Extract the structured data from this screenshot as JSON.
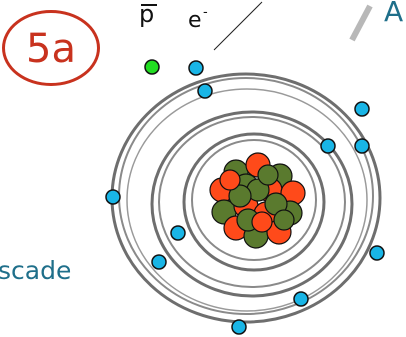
{
  "badge": {
    "label": "5a"
  },
  "labels": {
    "proton_symbol": "p",
    "electron_symbol": "e",
    "electron_superscript": "-",
    "corner_letter": "A",
    "side_word": "scade"
  },
  "colors": {
    "badge": "#c8321e",
    "electron": "#19b5e6",
    "proton_red": "#ff4a1a",
    "neutron_green": "#5a7a2e",
    "free_particle": "#22dd22",
    "orbit": "#7a7a7a",
    "accent_text": "#1f6f8a"
  },
  "diagram": {
    "orbit_count": 3,
    "electron_count": 12,
    "nucleus": {
      "red_particles": 10,
      "green_particles": 12
    },
    "free_particle": "green-dot"
  }
}
